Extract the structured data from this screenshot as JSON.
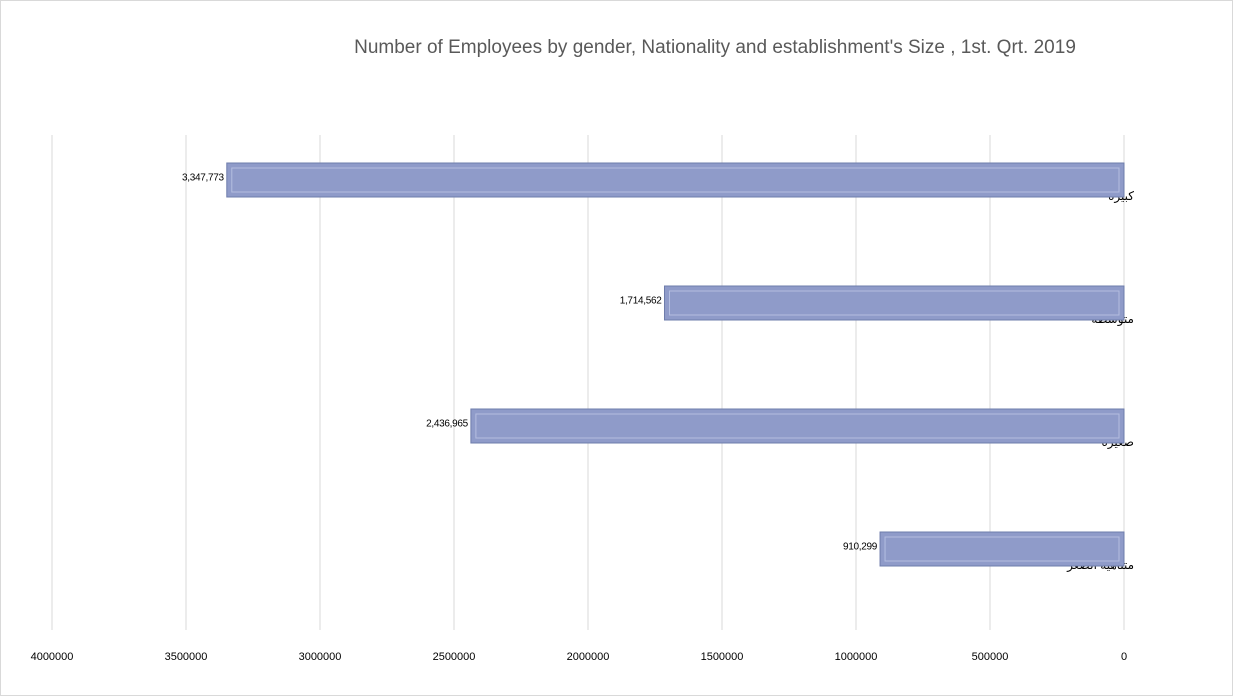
{
  "chart_data": {
    "type": "bar",
    "orientation": "horizontal",
    "x_reversed": true,
    "title": "Number of Employees by gender, Nationality and establishment's Size , 1st. Qrt. 2019",
    "categories": [
      "كبيرة",
      "متوسطة",
      "صغيرة",
      "متناهية الصغر"
    ],
    "values": [
      3347773,
      1714562,
      2436965,
      910299
    ],
    "value_labels": [
      "3,347,773",
      "1,714,562",
      "2,436,965",
      "910,299"
    ],
    "color": "#8f9bc9",
    "xlim": [
      0,
      4000000
    ],
    "xticks": [
      0,
      500000,
      1000000,
      1500000,
      2000000,
      2500000,
      3000000,
      3500000,
      4000000
    ],
    "grid": true
  }
}
